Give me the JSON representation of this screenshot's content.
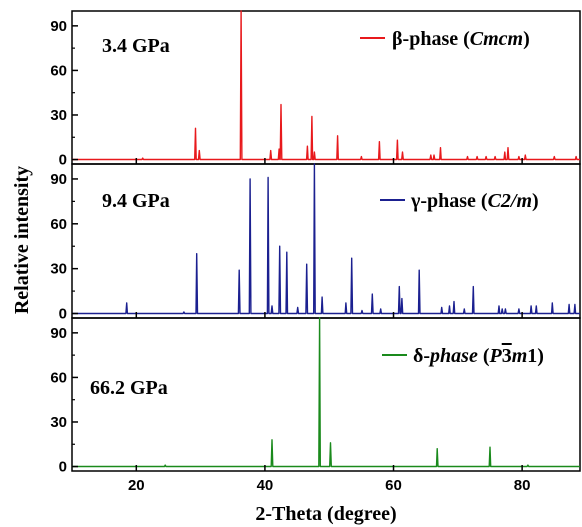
{
  "chart_data": {
    "type": "line",
    "xlabel": "2-Theta (degree)",
    "ylabel": "Relative intensity",
    "xlim": [
      10,
      89
    ],
    "x_ticks": [
      20,
      40,
      60,
      80
    ],
    "panels": [
      {
        "pressure_label": "3.4 GPa",
        "ylim": [
          -3,
          100
        ],
        "y_ticks": [
          0,
          30,
          60,
          90
        ],
        "series": {
          "name_prefix": "β-phase (",
          "name_symbol": "Cmcm",
          "name_suffix": ")",
          "color": "#e8191c",
          "peaks": [
            [
              21.0,
              1
            ],
            [
              29.2,
              21
            ],
            [
              29.8,
              6
            ],
            [
              36.3,
              100
            ],
            [
              40.9,
              6
            ],
            [
              42.2,
              7
            ],
            [
              42.5,
              37
            ],
            [
              46.6,
              9
            ],
            [
              47.3,
              29
            ],
            [
              47.7,
              5
            ],
            [
              51.3,
              16
            ],
            [
              55.0,
              2
            ],
            [
              57.8,
              12
            ],
            [
              60.6,
              13
            ],
            [
              61.4,
              5
            ],
            [
              65.8,
              3
            ],
            [
              66.3,
              3
            ],
            [
              67.3,
              8
            ],
            [
              71.5,
              2
            ],
            [
              73.0,
              2
            ],
            [
              74.4,
              2
            ],
            [
              75.8,
              2
            ],
            [
              77.3,
              5
            ],
            [
              77.8,
              8
            ],
            [
              79.5,
              2
            ],
            [
              80.5,
              3
            ],
            [
              85.0,
              2
            ],
            [
              88.4,
              2
            ]
          ]
        }
      },
      {
        "pressure_label": "9.4 GPa",
        "ylim": [
          -3,
          100
        ],
        "y_ticks": [
          0,
          30,
          60,
          90
        ],
        "series": {
          "name_prefix": "γ-phase (",
          "name_symbol": "C2/m",
          "name_suffix": ")",
          "color": "#1b2090",
          "peaks": [
            [
              18.5,
              7
            ],
            [
              27.4,
              1
            ],
            [
              29.4,
              40
            ],
            [
              36.0,
              29
            ],
            [
              37.7,
              90
            ],
            [
              40.5,
              91
            ],
            [
              41.1,
              5
            ],
            [
              42.3,
              45
            ],
            [
              43.4,
              41
            ],
            [
              45.1,
              4
            ],
            [
              46.5,
              33
            ],
            [
              47.7,
              100
            ],
            [
              48.9,
              11
            ],
            [
              52.6,
              7
            ],
            [
              53.5,
              37
            ],
            [
              55.1,
              2
            ],
            [
              56.7,
              13
            ],
            [
              58.0,
              3
            ],
            [
              60.9,
              18
            ],
            [
              61.3,
              10
            ],
            [
              64.0,
              29
            ],
            [
              67.5,
              4
            ],
            [
              68.7,
              5
            ],
            [
              69.4,
              8
            ],
            [
              71.0,
              3
            ],
            [
              72.4,
              18
            ],
            [
              76.4,
              5
            ],
            [
              76.9,
              3
            ],
            [
              77.4,
              3
            ],
            [
              79.5,
              3
            ],
            [
              81.4,
              5
            ],
            [
              82.2,
              5
            ],
            [
              84.7,
              7
            ],
            [
              87.3,
              6
            ],
            [
              88.2,
              6
            ]
          ]
        }
      },
      {
        "pressure_label": "66.2 GPa",
        "ylim": [
          -3,
          100
        ],
        "y_ticks": [
          0,
          30,
          60,
          90
        ],
        "series": {
          "name_prefix": "δ-",
          "name_italic": "phase",
          "name_mid": " (",
          "name_symbol_p": "P",
          "name_symbol_bar": "3",
          "name_symbol_m": "m",
          "name_symbol_tail": "1)",
          "color": "#1a8a1c",
          "peaks": [
            [
              24.5,
              1
            ],
            [
              41.1,
              18
            ],
            [
              48.5,
              100
            ],
            [
              50.2,
              16
            ],
            [
              66.8,
              12
            ],
            [
              75.0,
              13
            ],
            [
              80.9,
              1
            ]
          ]
        }
      }
    ]
  }
}
